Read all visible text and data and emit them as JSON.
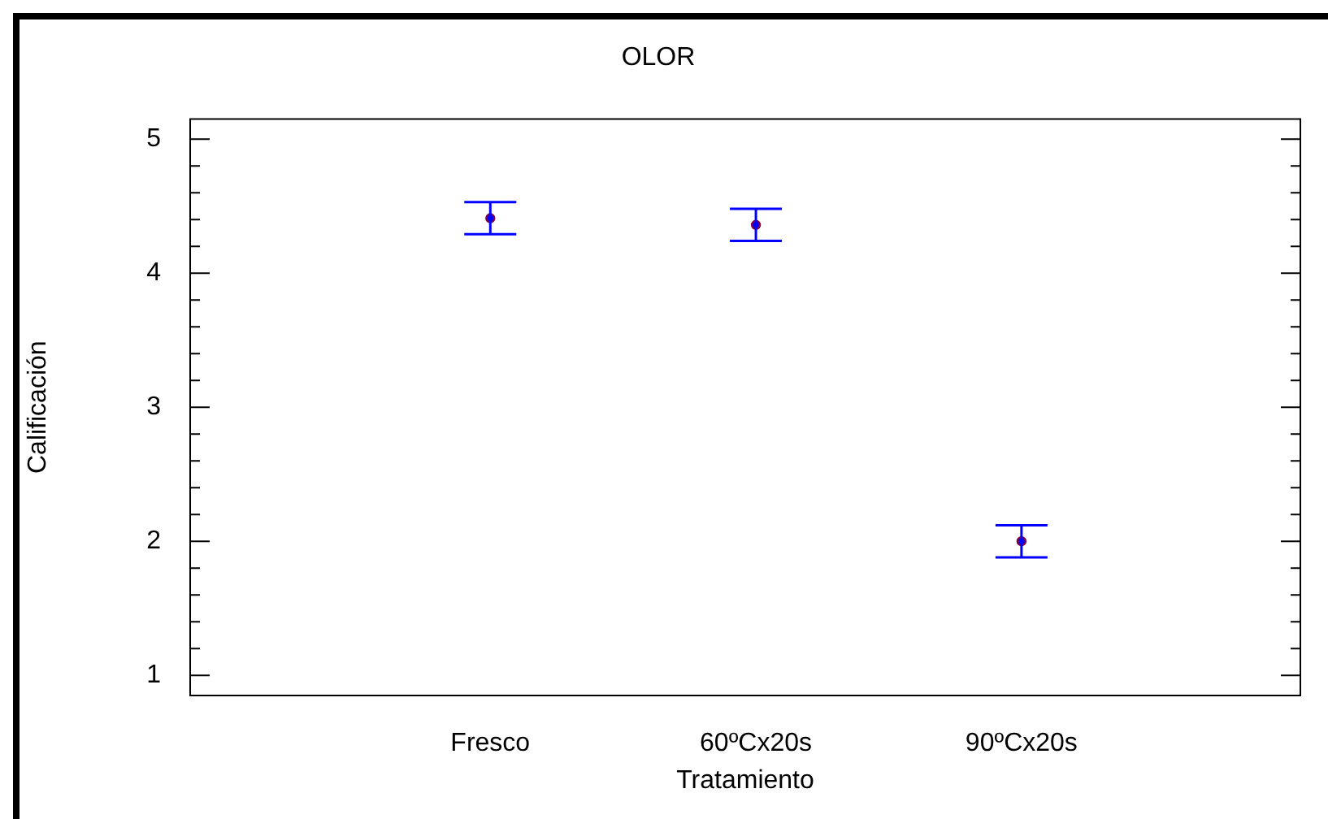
{
  "chart_data": {
    "type": "scatter",
    "title": "OLOR",
    "xlabel": "Tratamiento",
    "ylabel": "Calificación",
    "categories": [
      "Fresco",
      "60ºCx20s",
      "90ºCx20s"
    ],
    "series": [
      {
        "color": "#0000ff",
        "values": [
          4.41,
          4.36,
          2.0
        ],
        "errors": [
          0.12,
          0.12,
          0.12
        ]
      }
    ],
    "marker": "circle",
    "ylim": [
      0.85,
      5.15
    ],
    "yticks": [
      1,
      2,
      3,
      4,
      5
    ]
  }
}
